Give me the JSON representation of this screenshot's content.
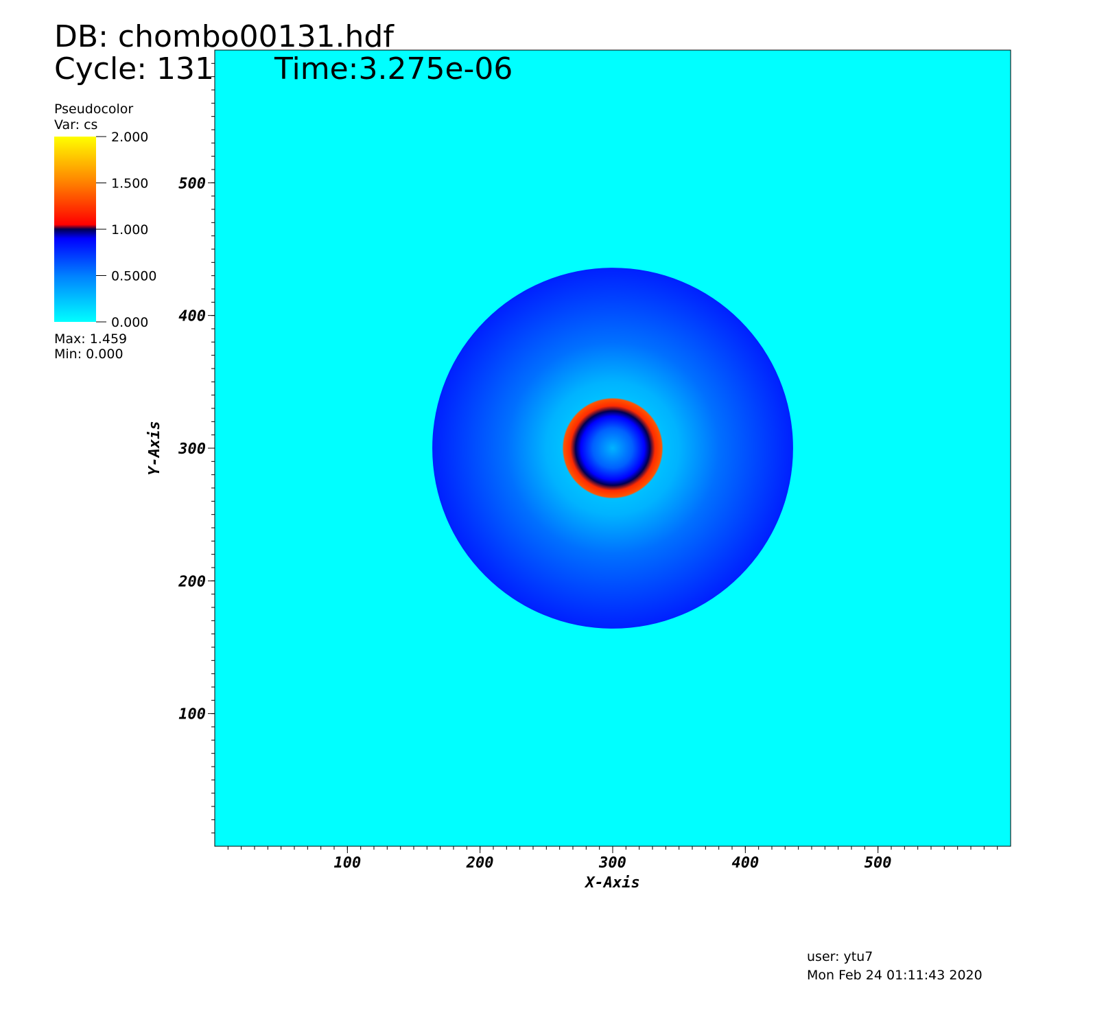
{
  "chart_data": {
    "type": "pseudocolor",
    "title": "DB: chombo00131.hdf",
    "cycle": "Cycle: 131",
    "time": "Time:3.275e-06",
    "legend_title": "Pseudocolor",
    "legend_var": "Var: cs",
    "legend_max": "Max:  1.459",
    "legend_min": "Min:  0.000",
    "x_label": "X-Axis",
    "y_label": "Y-Axis",
    "user": "user: ytu7",
    "date": "Mon Feb 24 01:11:43 2020",
    "xlim": [
      0,
      600
    ],
    "ylim": [
      0,
      600
    ],
    "xticks": [
      100,
      200,
      300,
      400,
      500
    ],
    "yticks": [
      100,
      200,
      300,
      400,
      500
    ],
    "minor_tick_step": 10,
    "colorbar_lim": [
      0,
      2
    ],
    "colorbar_ticks": [
      {
        "value": 0,
        "label": "0.000"
      },
      {
        "value": 0.5,
        "label": "0.5000"
      },
      {
        "value": 1,
        "label": "1.000"
      },
      {
        "value": 1.5,
        "label": "1.500"
      },
      {
        "value": 2,
        "label": "2.000"
      }
    ],
    "colormap": {
      "values": [
        0,
        0.5,
        0.9,
        1.0,
        1.05,
        1.5,
        2.0
      ],
      "colors": [
        "#00ffff",
        "#0080ff",
        "#0000ff",
        "#000050",
        "#ff0000",
        "#ff8000",
        "#ffff00"
      ]
    },
    "background_value": 0,
    "center": [
      300,
      300
    ],
    "radial_profile": {
      "r": [
        0,
        15,
        24,
        28,
        32,
        37,
        38,
        50,
        80,
        136
      ],
      "values": [
        0.3,
        0.6,
        0.9,
        1.0,
        1.2,
        1.35,
        0.25,
        0.3,
        0.55,
        0.8
      ]
    }
  }
}
